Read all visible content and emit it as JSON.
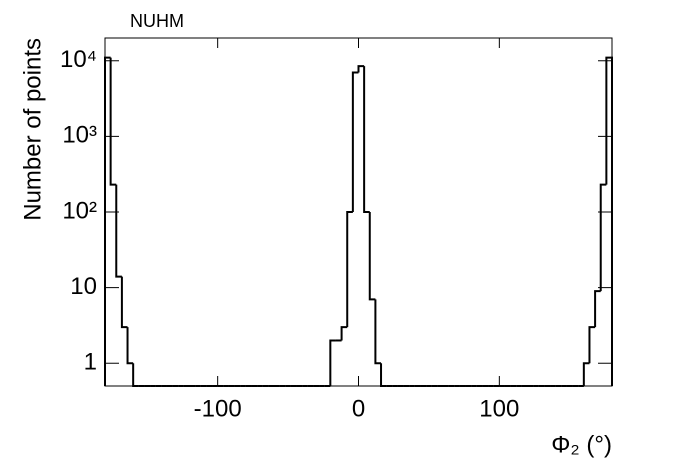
{
  "chart_data": {
    "type": "histogram",
    "title": "NUHM",
    "x_label": "Φ₂ (°)",
    "y_label": "Number of points",
    "bins": [
      -180,
      -176,
      -172,
      -168,
      -164,
      -160,
      -156,
      -152,
      -148,
      -144,
      -140,
      -136,
      -132,
      -128,
      -124,
      -120,
      -116,
      -112,
      -108,
      -104,
      -100,
      -96,
      -92,
      -88,
      -84,
      -80,
      -76,
      -72,
      -68,
      -64,
      -60,
      -56,
      -52,
      -48,
      -44,
      -40,
      -36,
      -32,
      -28,
      -24,
      -20,
      -16,
      -12,
      -8,
      -4,
      0,
      4,
      8,
      12,
      16,
      20,
      24,
      28,
      32,
      36,
      40,
      44,
      48,
      52,
      56,
      60,
      64,
      68,
      72,
      76,
      80,
      84,
      88,
      92,
      96,
      100,
      104,
      108,
      112,
      116,
      120,
      124,
      128,
      132,
      136,
      140,
      144,
      148,
      152,
      156,
      160,
      164,
      168,
      172,
      176,
      180
    ],
    "values": [
      11000,
      230,
      14,
      3,
      1,
      0,
      0,
      0,
      0,
      0,
      0,
      0,
      0,
      0,
      0,
      0,
      0,
      0,
      0,
      0,
      0,
      0,
      0,
      0,
      0,
      0,
      0,
      0,
      0,
      0,
      0,
      0,
      0,
      0,
      0,
      0,
      0,
      0,
      0,
      0,
      2,
      2,
      3,
      100,
      7000,
      8500,
      100,
      7,
      1,
      0,
      0,
      0,
      0,
      0,
      0,
      0,
      0,
      0,
      0,
      0,
      0,
      0,
      0,
      0,
      0,
      0,
      0,
      0,
      0,
      0,
      0,
      0,
      0,
      0,
      0,
      0,
      0,
      0,
      0,
      0,
      0,
      0,
      0,
      0,
      0,
      1,
      3,
      9,
      230,
      11000
    ],
    "color": "#000000",
    "log_y": true,
    "xlim": [
      -180,
      180
    ],
    "xticks": [
      -100,
      0,
      100
    ],
    "ylim": [
      0.5,
      20000
    ],
    "yticks": [
      1,
      10,
      {
        "value": 100,
        "label": "10²"
      },
      {
        "value": 1000,
        "label": "10³"
      },
      {
        "value": 10000,
        "label": "10⁴"
      }
    ]
  }
}
